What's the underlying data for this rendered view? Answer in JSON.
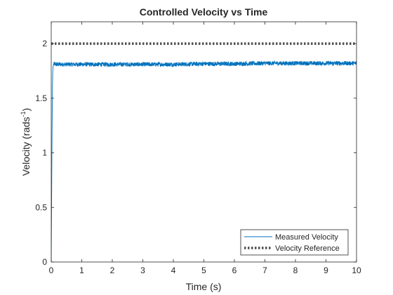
{
  "chart_data": {
    "type": "line",
    "title": "Controlled Velocity vs Time",
    "xlabel": "Time (s)",
    "ylabel_main": "Velocity (rads",
    "ylabel_sup": "-1",
    "ylabel_close": ")",
    "xlim": [
      0,
      10
    ],
    "ylim": [
      0,
      2.2
    ],
    "xticks": [
      0,
      1,
      2,
      3,
      4,
      5,
      6,
      7,
      8,
      9,
      10
    ],
    "yticks": [
      0,
      0.5,
      1,
      1.5,
      2
    ],
    "grid": false,
    "legend_position": "bottom-right",
    "series": [
      {
        "name": "Measured Velocity",
        "color": "#0072BD",
        "style": "solid",
        "x": [
          0,
          0.01,
          0.02,
          0.03,
          0.04,
          0.05,
          0.06,
          0.08,
          0.1,
          0.15,
          0.2,
          0.3,
          0.5,
          1,
          2,
          3,
          4,
          5,
          6,
          7,
          8,
          9,
          10
        ],
        "y": [
          0,
          0.45,
          0.9,
          1.3,
          1.6,
          1.74,
          1.79,
          1.81,
          1.815,
          1.81,
          1.81,
          1.81,
          1.81,
          1.81,
          1.81,
          1.81,
          1.81,
          1.815,
          1.815,
          1.82,
          1.82,
          1.82,
          1.82
        ],
        "noise_amplitude": 0.02
      },
      {
        "name": "Velocity Reference",
        "color": "#4d4d4d",
        "style": "dotted",
        "x": [
          0,
          10
        ],
        "y": [
          2,
          2
        ]
      }
    ]
  }
}
